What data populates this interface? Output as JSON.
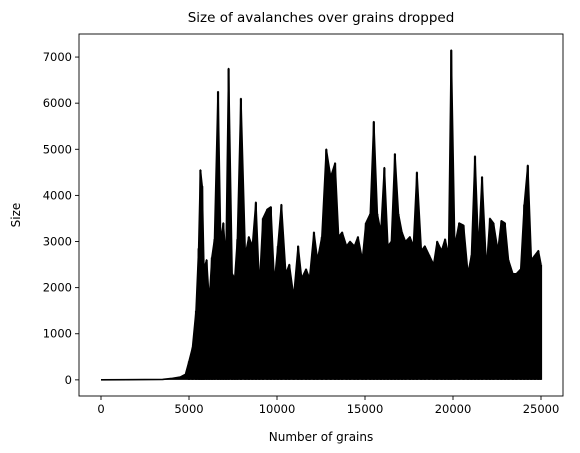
{
  "chart_data": {
    "type": "line",
    "title": "Size of avalanches over grains dropped",
    "xlabel": "Number of grains",
    "ylabel": "Size",
    "xlim": [
      -1250,
      26250
    ],
    "ylim": [
      -350,
      7500
    ],
    "xticks": [
      0,
      5000,
      10000,
      15000,
      20000,
      25000
    ],
    "yticks": [
      0,
      1000,
      2000,
      3000,
      4000,
      5000,
      6000,
      7000
    ],
    "grid": false,
    "series": [
      {
        "color": "#000000",
        "x": [
          0,
          3500,
          4000,
          4500,
          4800,
          5000,
          5200,
          5400,
          5550,
          5650,
          5750,
          5850,
          6000,
          6150,
          6300,
          6450,
          6650,
          6800,
          6950,
          7100,
          7250,
          7450,
          7600,
          7750,
          7950,
          8200,
          8400,
          8600,
          8800,
          9000,
          9200,
          9450,
          9650,
          9850,
          10050,
          10250,
          10500,
          10700,
          10950,
          11200,
          11400,
          11650,
          11850,
          12100,
          12300,
          12550,
          12800,
          13050,
          13300,
          13500,
          13700,
          13950,
          14150,
          14400,
          14600,
          14850,
          15050,
          15300,
          15500,
          15700,
          15900,
          16100,
          16300,
          16500,
          16700,
          16900,
          17100,
          17300,
          17550,
          17750,
          17950,
          18200,
          18400,
          18650,
          18900,
          19100,
          19350,
          19550,
          19750,
          19900,
          20100,
          20350,
          20600,
          20850,
          21050,
          21250,
          21450,
          21650,
          21900,
          22100,
          22300,
          22550,
          22750,
          22950,
          23150,
          23400,
          23600,
          23850,
          24050,
          24250,
          24450,
          24650,
          24850,
          25000
        ],
        "values": [
          0,
          10,
          30,
          60,
          120,
          400,
          700,
          1500,
          2850,
          4550,
          4200,
          2400,
          2600,
          1700,
          2650,
          3050,
          6250,
          3000,
          3400,
          2600,
          6750,
          2300,
          2200,
          3050,
          6100,
          2700,
          3100,
          2900,
          3850,
          2000,
          3500,
          3700,
          3750,
          2100,
          2900,
          3800,
          2300,
          2500,
          1800,
          2900,
          2200,
          2400,
          2200,
          3200,
          2600,
          3100,
          5000,
          4400,
          4700,
          3100,
          3200,
          2900,
          3000,
          2900,
          3100,
          2600,
          3400,
          3600,
          5600,
          3600,
          3200,
          4600,
          2900,
          3000,
          4900,
          3600,
          3200,
          3000,
          3100,
          2900,
          4500,
          2800,
          2900,
          2700,
          2500,
          3000,
          2800,
          3050,
          2700,
          7150,
          2900,
          3400,
          3350,
          2300,
          2700,
          4850,
          2800,
          4400,
          2400,
          3500,
          3400,
          2800,
          3450,
          3400,
          2600,
          2300,
          2300,
          2400,
          3800,
          4650,
          2600,
          2700,
          2800,
          2500
        ]
      }
    ]
  }
}
